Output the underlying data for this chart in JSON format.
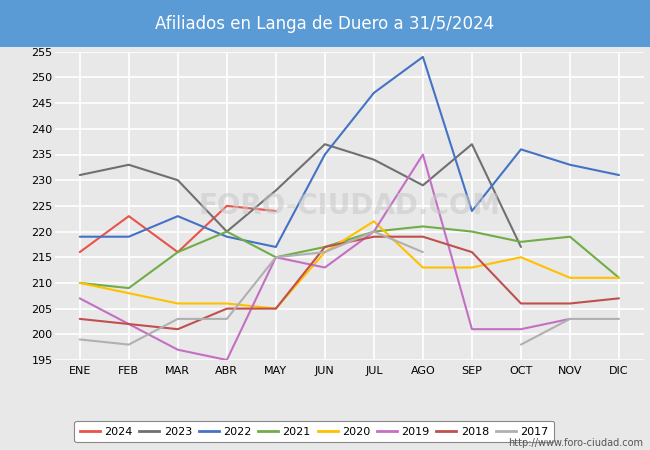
{
  "title": "Afiliados en Langa de Duero a 31/5/2024",
  "title_bg_color": "#5b9bd5",
  "title_text_color": "white",
  "ylim": [
    195,
    255
  ],
  "yticks": [
    195,
    200,
    205,
    210,
    215,
    220,
    225,
    230,
    235,
    240,
    245,
    250,
    255
  ],
  "months": [
    "ENE",
    "FEB",
    "MAR",
    "ABR",
    "MAY",
    "JUN",
    "JUL",
    "AGO",
    "SEP",
    "OCT",
    "NOV",
    "DIC"
  ],
  "url": "http://www.foro-ciudad.com",
  "series": {
    "2024": {
      "color": "#e8534a",
      "data": [
        216,
        223,
        216,
        225,
        224,
        null,
        null,
        null,
        null,
        null,
        null,
        null
      ]
    },
    "2023": {
      "color": "#707070",
      "data": [
        231,
        233,
        230,
        220,
        228,
        237,
        234,
        229,
        237,
        217,
        null,
        null
      ]
    },
    "2022": {
      "color": "#4472c4",
      "data": [
        219,
        219,
        223,
        219,
        217,
        235,
        247,
        254,
        224,
        236,
        233,
        231
      ]
    },
    "2021": {
      "color": "#70ad47",
      "data": [
        210,
        209,
        216,
        220,
        215,
        217,
        220,
        221,
        220,
        218,
        219,
        211
      ]
    },
    "2020": {
      "color": "#ffc000",
      "data": [
        210,
        208,
        206,
        206,
        205,
        216,
        222,
        213,
        213,
        215,
        211,
        211
      ]
    },
    "2019": {
      "color": "#c46fc4",
      "data": [
        207,
        202,
        197,
        195,
        215,
        213,
        220,
        235,
        201,
        201,
        203,
        null
      ]
    },
    "2018": {
      "color": "#c0504d",
      "data": [
        203,
        202,
        201,
        205,
        205,
        217,
        219,
        219,
        216,
        206,
        206,
        207
      ]
    },
    "2017": {
      "color": "#b0b0b0",
      "data": [
        199,
        198,
        203,
        203,
        215,
        216,
        220,
        216,
        null,
        198,
        203,
        203
      ]
    }
  },
  "legend_order": [
    "2024",
    "2023",
    "2022",
    "2021",
    "2020",
    "2019",
    "2018",
    "2017"
  ],
  "fig_bg_color": "#e8e8e8",
  "plot_bg_color": "#e8e8e8",
  "grid_color": "white",
  "grid_linewidth": 1.2,
  "linewidth": 1.5
}
